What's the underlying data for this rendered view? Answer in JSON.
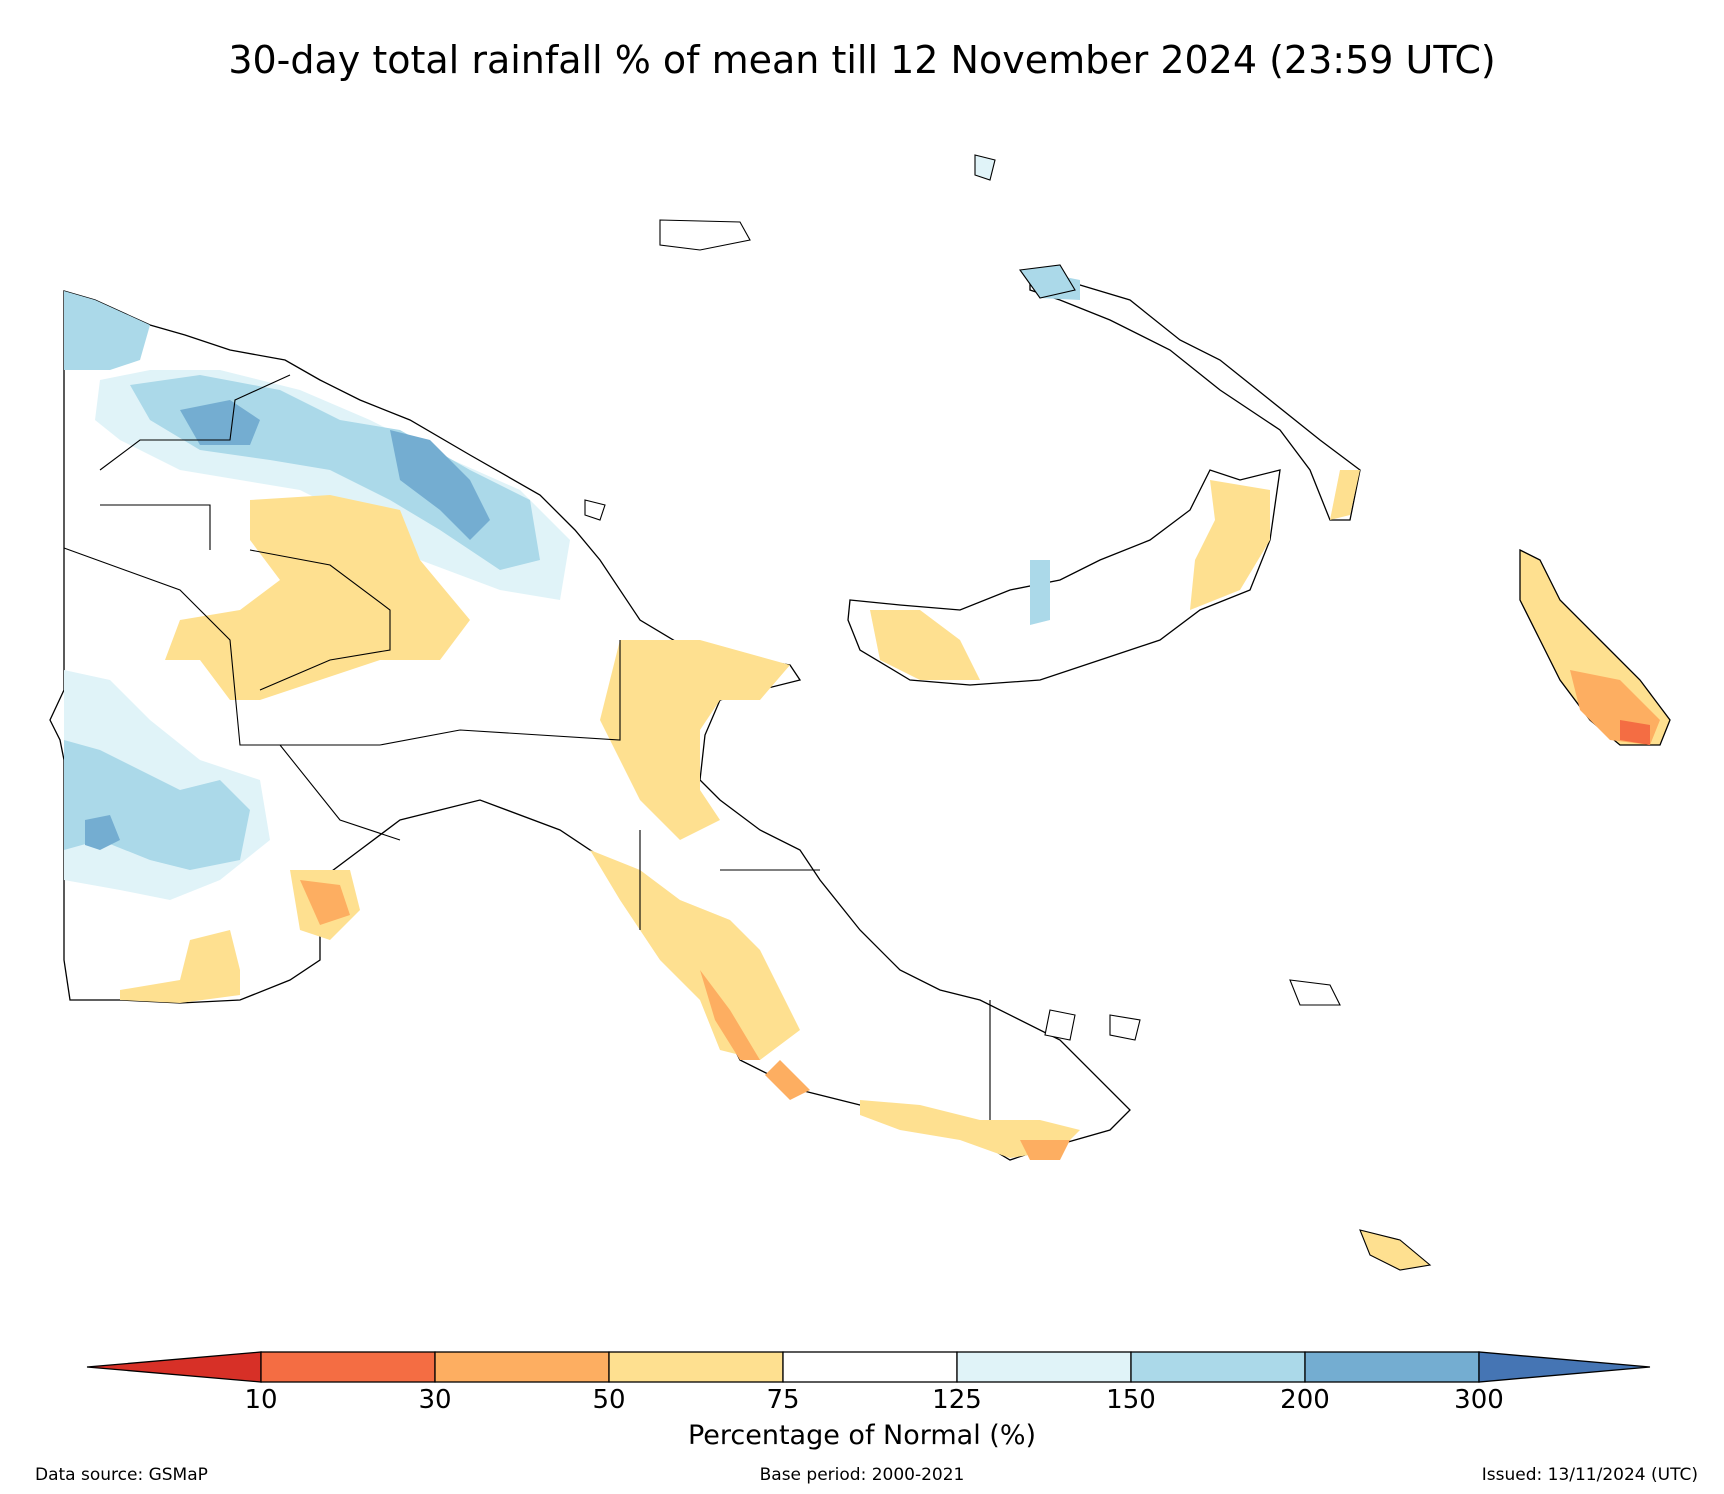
{
  "title": "30-day total rainfall % of mean till 12 November 2024 (23:59 UTC)",
  "colorbar": {
    "label": "Percentage of Normal (%)",
    "ticks": [
      "10",
      "30",
      "50",
      "75",
      "125",
      "150",
      "200",
      "300"
    ],
    "colors": {
      "below_10": "#d73027",
      "10_30": "#f46d43",
      "30_50": "#fdae61",
      "50_75": "#fee090",
      "75_125": "#ffffff",
      "125_150": "#e0f3f8",
      "150_200": "#abd9e9",
      "200_300": "#74add1",
      "above_300": "#4575b4"
    }
  },
  "footer": {
    "source": "Data source: GSMaP",
    "base_period": "Base period: 2000-2021",
    "issued": "Issued: 13/11/2024 (UTC)"
  }
}
